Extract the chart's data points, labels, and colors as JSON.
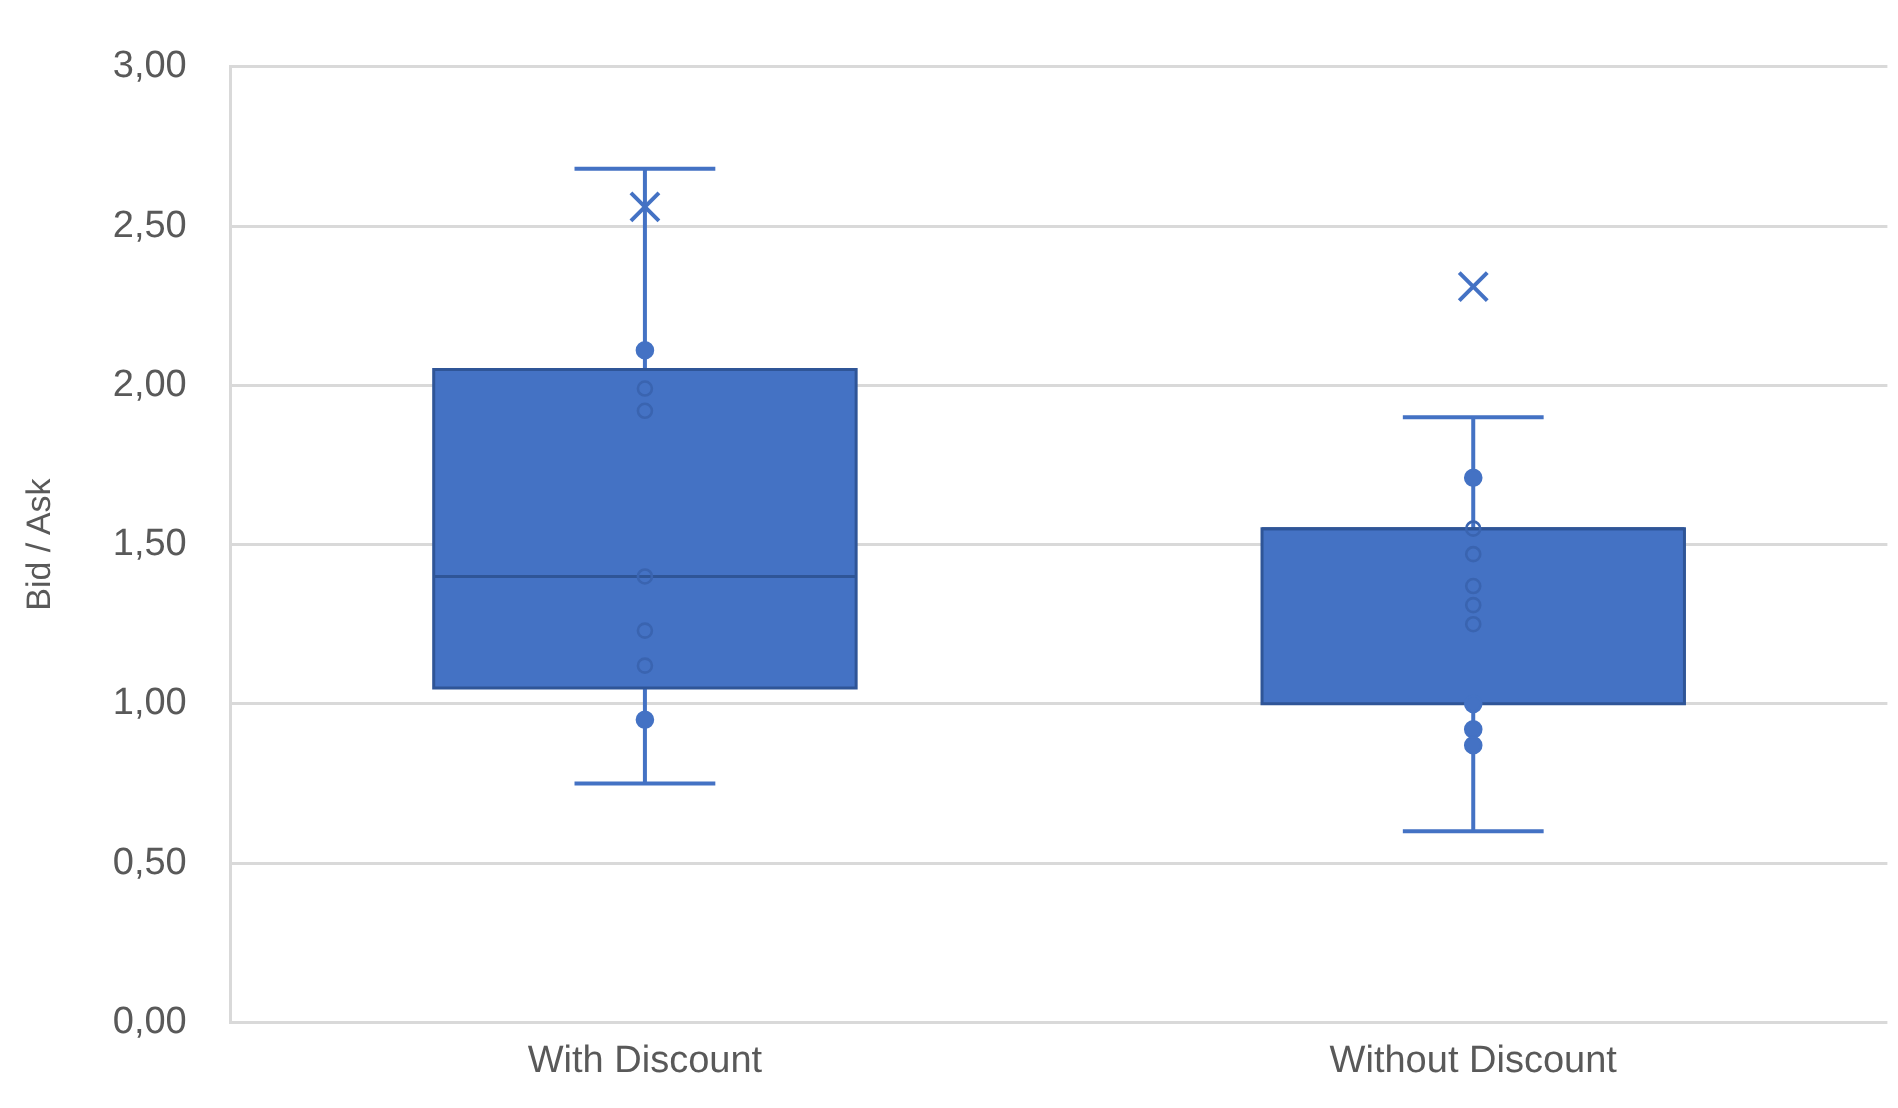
{
  "chart_data": {
    "type": "box",
    "ylabel": "Bid / Ask",
    "categories": [
      "With Discount",
      "Without Discount"
    ],
    "series": [
      {
        "color": "#4472c4",
        "boxes": [
          {
            "low": 0.75,
            "q1": 1.05,
            "median": 1.4,
            "q3": 2.05,
            "high": 2.68,
            "mean": 2.56
          },
          {
            "low": 0.6,
            "q1": 1.0,
            "median": 1.55,
            "q3": 1.55,
            "high": 1.9,
            "mean": 2.31
          }
        ]
      },
      {
        "type": "scatter",
        "color": "#4472c4",
        "marker": "circle",
        "x": [
          "With Discount",
          "With Discount",
          "Without Discount",
          "Without Discount",
          "Without Discount",
          "Without Discount"
        ],
        "values": [
          2.11,
          0.95,
          1.71,
          1.0,
          0.92,
          0.87
        ]
      },
      {
        "type": "scatter",
        "color": "#3a64b0",
        "marker": "circle",
        "x": [
          "With Discount",
          "With Discount",
          "With Discount",
          "With Discount",
          "With Discount",
          "Without Discount",
          "Without Discount",
          "Without Discount",
          "Without Discount",
          "Without Discount"
        ],
        "values": [
          1.99,
          1.92,
          1.4,
          1.23,
          1.12,
          1.55,
          1.47,
          1.37,
          1.31,
          1.25
        ]
      }
    ],
    "ylim": [
      0,
      3
    ],
    "yticks": [
      {
        "value": 0,
        "label": "0,00"
      },
      {
        "value": 0.5,
        "label": "0,50"
      },
      {
        "value": 1,
        "label": "1,00"
      },
      {
        "value": 1.5,
        "label": "1,50"
      },
      {
        "value": 2,
        "label": "2,00"
      },
      {
        "value": 2.5,
        "label": "2,50"
      },
      {
        "value": 3,
        "label": "3,00"
      }
    ],
    "grid": "y",
    "legend": false
  }
}
